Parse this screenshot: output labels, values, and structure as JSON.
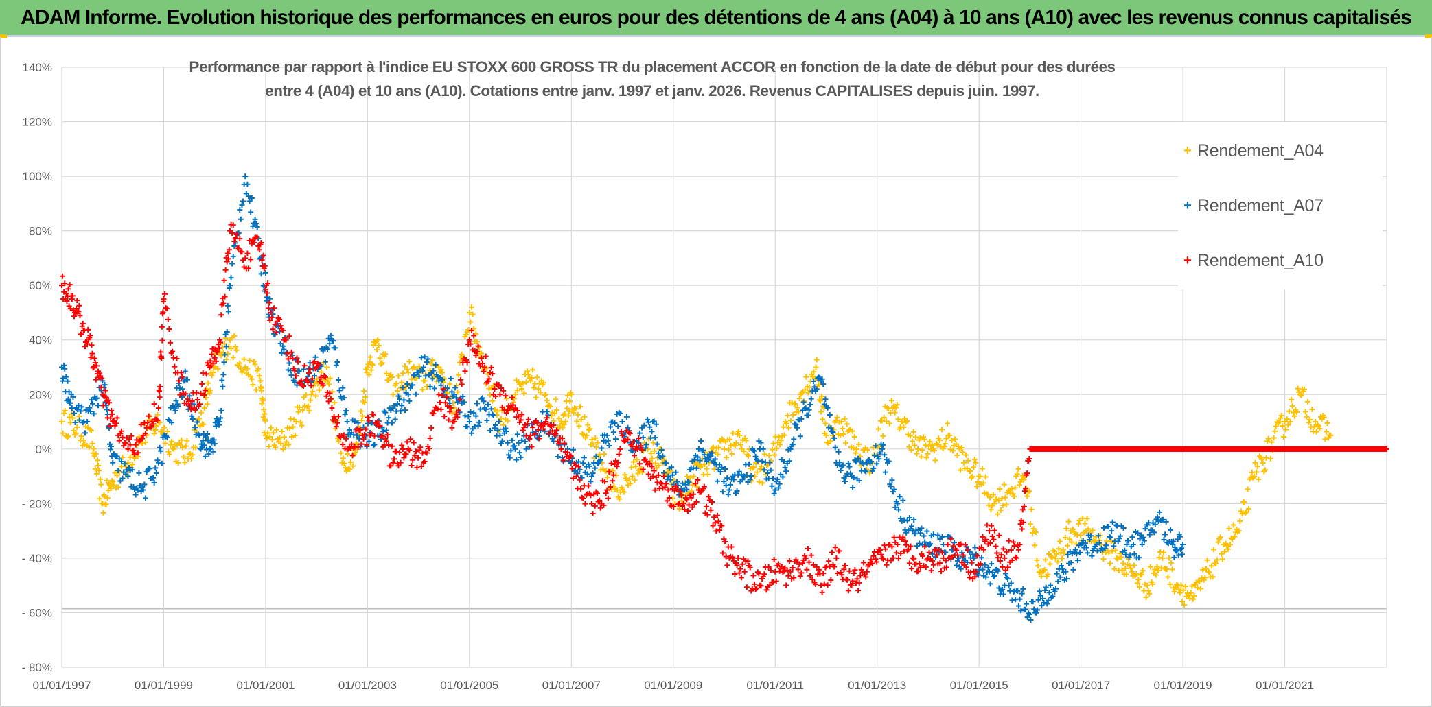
{
  "header": {
    "title": "ADAM Informe. Evolution historique des performances en euros pour des détentions de 4 ans (A04) à 10 ans (A10) avec les revenus connus capitalisés"
  },
  "chart_data": {
    "type": "scatter",
    "title_lines": [
      "Performance  par rapport à l'indice EU STOXX 600 GROSS TR  du placement ACCOR en fonction de la date de début pour des durées",
      "entre 4 (A04) et 10 ans (A10). Cotations entre janv. 1997 et janv. 2026. Revenus CAPITALISES depuis juin. 1997."
    ],
    "xlabel": "",
    "ylabel": "",
    "x_range": [
      1997.0,
      2023.0
    ],
    "ylim": [
      -80,
      140
    ],
    "y_ticks": [
      140,
      120,
      100,
      80,
      60,
      40,
      20,
      0,
      -20,
      -40,
      -60,
      -80
    ],
    "y_tick_labels": [
      "140%",
      "120%",
      "100%",
      "80%",
      "60%",
      "40%",
      "20%",
      "0%",
      "- 20%",
      "- 40%",
      "- 60%",
      "- 80%"
    ],
    "x_ticks": [
      1997,
      1999,
      2001,
      2003,
      2005,
      2007,
      2009,
      2011,
      2013,
      2015,
      2017,
      2019,
      2021
    ],
    "x_tick_labels": [
      "01/01/1997",
      "01/01/1999",
      "01/01/2001",
      "01/01/2003",
      "01/01/2005",
      "01/01/2007",
      "01/01/2009",
      "01/01/2011",
      "01/01/2013",
      "01/01/2015",
      "01/01/2017",
      "01/01/2019",
      "01/01/2021"
    ],
    "legend_position": "top-right",
    "series": [
      {
        "name": "Rendement_A04",
        "color": "#ffc000",
        "x": [
          1997.0,
          1997.3,
          1997.6,
          1997.8,
          1998.0,
          1998.3,
          1998.6,
          1998.9,
          1999.2,
          1999.5,
          1999.8,
          2000.0,
          2000.3,
          2000.6,
          2000.9,
          2001.0,
          2001.3,
          2001.6,
          2001.9,
          2002.2,
          2002.5,
          2002.8,
          2003.0,
          2003.2,
          2003.5,
          2003.8,
          2004.1,
          2004.4,
          2004.7,
          2005.0,
          2005.3,
          2005.6,
          2005.9,
          2006.2,
          2006.5,
          2006.8,
          2007.0,
          2007.3,
          2007.6,
          2007.9,
          2008.2,
          2008.5,
          2008.8,
          2009.1,
          2009.4,
          2009.7,
          2010.0,
          2010.3,
          2010.6,
          2010.9,
          2011.2,
          2011.5,
          2011.8,
          2012.0,
          2012.3,
          2012.6,
          2012.9,
          2013.2,
          2013.5,
          2013.8,
          2014.1,
          2014.4,
          2014.7,
          2015.0,
          2015.3,
          2015.6,
          2015.9,
          2016.2,
          2016.5,
          2016.8,
          2017.1,
          2017.4,
          2017.7,
          2018.0,
          2018.3,
          2018.6,
          2018.9,
          2019.2,
          2019.5,
          2019.8,
          2020.1,
          2020.4,
          2020.7,
          2021.0,
          2021.3,
          2021.6,
          2021.9
        ],
        "y": [
          10,
          8,
          2,
          -20,
          -12,
          -5,
          5,
          10,
          0,
          -2,
          15,
          30,
          40,
          30,
          25,
          5,
          2,
          10,
          20,
          30,
          -5,
          0,
          30,
          40,
          20,
          28,
          25,
          30,
          15,
          50,
          30,
          10,
          20,
          25,
          20,
          10,
          20,
          5,
          -5,
          -15,
          -10,
          0,
          -5,
          -20,
          -10,
          -5,
          0,
          5,
          -10,
          -5,
          10,
          20,
          30,
          5,
          10,
          0,
          -5,
          15,
          10,
          0,
          0,
          5,
          -5,
          -10,
          -20,
          -15,
          -10,
          -45,
          -40,
          -30,
          -30,
          -35,
          -40,
          -45,
          -50,
          -40,
          -50,
          -55,
          -45,
          -35,
          -30,
          -10,
          0,
          10,
          20,
          10,
          5
        ]
      },
      {
        "name": "Rendement_A07",
        "color": "#0070c0",
        "x": [
          1997.0,
          1997.2,
          1997.5,
          1997.8,
          1998.0,
          1998.3,
          1998.6,
          1998.9,
          1999.2,
          1999.4,
          1999.7,
          1999.9,
          2000.1,
          2000.3,
          2000.6,
          2000.9,
          2001.1,
          2001.4,
          2001.7,
          2002.0,
          2002.3,
          2002.6,
          2002.9,
          2003.2,
          2003.5,
          2003.8,
          2004.1,
          2004.4,
          2004.7,
          2005.0,
          2005.3,
          2005.6,
          2005.9,
          2006.2,
          2006.5,
          2006.8,
          2007.1,
          2007.4,
          2007.7,
          2008.0,
          2008.3,
          2008.6,
          2008.9,
          2009.2,
          2009.5,
          2009.8,
          2010.1,
          2010.4,
          2010.7,
          2011.0,
          2011.3,
          2011.6,
          2011.9,
          2012.2,
          2012.5,
          2012.8,
          2013.1,
          2013.4,
          2013.7,
          2014.0,
          2014.3,
          2014.6,
          2014.9,
          2015.2,
          2015.5,
          2015.8,
          2016.1,
          2016.4,
          2016.7,
          2017.0,
          2017.3,
          2017.6,
          2017.9,
          2018.2,
          2018.5,
          2018.8,
          2019.0
        ],
        "y": [
          30,
          15,
          10,
          25,
          -5,
          -10,
          -15,
          -5,
          15,
          25,
          5,
          0,
          10,
          60,
          100,
          70,
          50,
          35,
          25,
          30,
          40,
          10,
          5,
          5,
          15,
          20,
          30,
          25,
          20,
          10,
          15,
          5,
          0,
          5,
          10,
          0,
          -5,
          -10,
          5,
          10,
          0,
          10,
          -10,
          -15,
          0,
          -5,
          -15,
          -10,
          0,
          -15,
          0,
          15,
          25,
          -5,
          -10,
          -5,
          0,
          -20,
          -30,
          -35,
          -35,
          -40,
          -40,
          -45,
          -50,
          -55,
          -60,
          -50,
          -45,
          -35,
          -35,
          -30,
          -35,
          -35,
          -25,
          -35,
          -35
        ]
      },
      {
        "name": "Rendement_A10",
        "color": "#ff0000",
        "x": [
          1997.0,
          1997.2,
          1997.4,
          1997.6,
          1997.8,
          1998.0,
          1998.3,
          1998.6,
          1998.9,
          1999.0,
          1999.3,
          1999.6,
          1999.9,
          2000.1,
          2000.3,
          2000.6,
          2000.9,
          2001.1,
          2001.4,
          2001.7,
          2002.0,
          2002.3,
          2002.6,
          2002.9,
          2003.2,
          2003.5,
          2003.8,
          2004.1,
          2004.4,
          2004.7,
          2005.0,
          2005.3,
          2005.6,
          2005.9,
          2006.2,
          2006.5,
          2006.8,
          2007.1,
          2007.4,
          2007.7,
          2008.0,
          2008.3,
          2008.6,
          2008.9,
          2009.2,
          2009.5,
          2009.8,
          2010.1,
          2010.4,
          2010.7,
          2011.0,
          2011.3,
          2011.6,
          2011.9,
          2012.2,
          2012.5,
          2012.8,
          2013.1,
          2013.4,
          2013.7,
          2014.0,
          2014.3,
          2014.6,
          2014.9,
          2015.2,
          2015.5,
          2015.8,
          2016.0,
          2016.5,
          2017.0,
          2017.5,
          2018.0,
          2018.5,
          2019.0,
          2019.5,
          2020.0,
          2020.5,
          2021.0,
          2021.5,
          2022.0,
          2022.5,
          2023.0
        ],
        "y": [
          60,
          55,
          45,
          35,
          20,
          10,
          0,
          5,
          15,
          55,
          25,
          15,
          30,
          40,
          80,
          70,
          75,
          50,
          40,
          25,
          30,
          15,
          0,
          5,
          10,
          -5,
          0,
          -5,
          20,
          10,
          40,
          30,
          20,
          15,
          5,
          10,
          0,
          -10,
          -20,
          -15,
          5,
          0,
          -10,
          -15,
          -20,
          -15,
          -25,
          -40,
          -45,
          -50,
          -45,
          -45,
          -40,
          -50,
          -40,
          -50,
          -45,
          -40,
          -35,
          -40,
          -40,
          -40,
          -35,
          -45,
          -30,
          -40,
          -35,
          0,
          0,
          0,
          0,
          0,
          0,
          0,
          0,
          0,
          0,
          0,
          0,
          0,
          0,
          0
        ]
      }
    ]
  }
}
